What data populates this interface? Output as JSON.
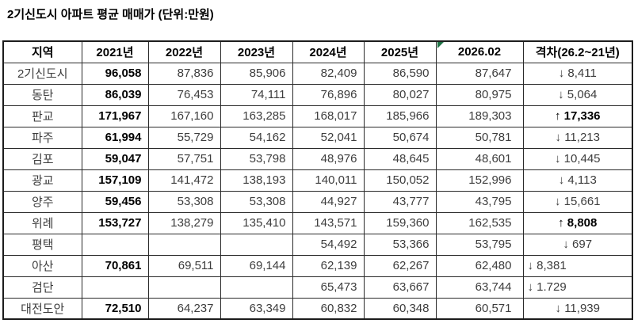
{
  "title": "2기신도시 아파트 평균 매매가 (단위:만원)",
  "colors": {
    "background": "#ffffff",
    "border": "#2a2a2a",
    "text_regular": "#3d3d3d",
    "text_bold": "#000000",
    "comment_marker_green": "#1e7145"
  },
  "icons": {
    "comment_marker": "cell-corner-flag",
    "down_arrow": "↓",
    "up_arrow": "↑"
  },
  "chart_data": {
    "type": "table",
    "title": "2기신도시 아파트 평균 매매가 (단위:만원)",
    "unit": "만원",
    "columns": [
      "지역",
      "2021년",
      "2022년",
      "2023년",
      "2024년",
      "2025년",
      "2026.02",
      "격차(26.2~21년)"
    ],
    "comment_marker_column": "2026.02",
    "rows": [
      {
        "cells": [
          "2기신도시",
          "96,058",
          "87,836",
          "85,906",
          "82,409",
          "86,590",
          "87,647",
          "↓ 8,411"
        ],
        "gap_bold": false,
        "gap_align": "center"
      },
      {
        "cells": [
          "동탄",
          "86,039",
          "76,453",
          "74,111",
          "76,896",
          "80,027",
          "80,975",
          "↓ 5,064"
        ],
        "gap_bold": false,
        "gap_align": "center"
      },
      {
        "cells": [
          "판교",
          "171,967",
          "167,160",
          "163,285",
          "168,017",
          "185,966",
          "189,303",
          "↑ 17,336"
        ],
        "gap_bold": true,
        "gap_align": "center"
      },
      {
        "cells": [
          "파주",
          "61,994",
          "55,729",
          "54,162",
          "52,041",
          "50,674",
          "50,781",
          "↓ 11,213"
        ],
        "gap_bold": false,
        "gap_align": "center"
      },
      {
        "cells": [
          "김포",
          "59,047",
          "57,751",
          "53,798",
          "48,976",
          "48,645",
          "48,601",
          "↓ 10,445"
        ],
        "gap_bold": false,
        "gap_align": "center"
      },
      {
        "cells": [
          "광교",
          "157,109",
          "141,472",
          "138,193",
          "140,011",
          "150,052",
          "152,996",
          "↓ 4,113"
        ],
        "gap_bold": false,
        "gap_align": "center"
      },
      {
        "cells": [
          "양주",
          "59,456",
          "53,308",
          "53,308",
          "44,927",
          "43,777",
          "43,795",
          "↓ 15,661"
        ],
        "gap_bold": false,
        "gap_align": "center"
      },
      {
        "cells": [
          "위례",
          "153,727",
          "138,279",
          "135,410",
          "143,571",
          "159,360",
          "162,535",
          "↑ 8,808"
        ],
        "gap_bold": true,
        "gap_align": "center"
      },
      {
        "cells": [
          "평택",
          "",
          "",
          "",
          "54,492",
          "53,366",
          "53,795",
          "↓ 697"
        ],
        "gap_bold": false,
        "gap_align": "center"
      },
      {
        "cells": [
          "아산",
          "70,861",
          "69,511",
          "69,144",
          "62,139",
          "62,267",
          "62,480",
          "↓ 8,381"
        ],
        "gap_bold": false,
        "gap_align": "left"
      },
      {
        "cells": [
          "검단",
          "",
          "",
          "",
          "65,473",
          "63,667",
          "63,744",
          "↓ 1.729"
        ],
        "gap_bold": false,
        "gap_align": "left"
      },
      {
        "cells": [
          "대전도안",
          "72,510",
          "64,237",
          "63,349",
          "60,832",
          "60,348",
          "60,571",
          "↓ 11,939"
        ],
        "gap_bold": false,
        "gap_align": "center"
      }
    ]
  }
}
